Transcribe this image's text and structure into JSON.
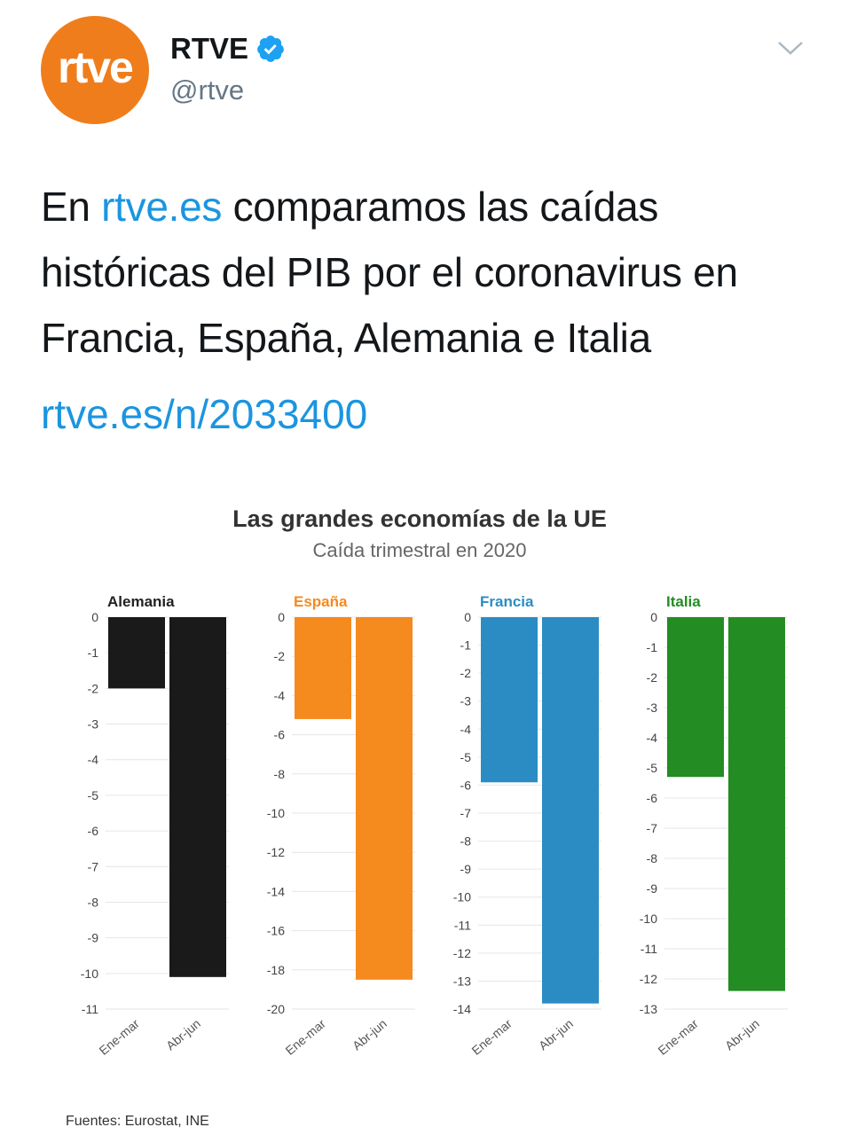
{
  "tweet": {
    "avatar_text": "rtve",
    "display_name": "RTVE",
    "handle": "@rtve",
    "text_parts": {
      "pre": "En ",
      "link": "rtve.es",
      "post": " comparamos las caídas históricas del PIB por el coronavirus en Francia, España, Alemania e Italia"
    },
    "url": "rtve.es/n/2033400"
  },
  "colors": {
    "brand": "#f07d1c",
    "link": "#1b95e0",
    "verified": "#1da1f2"
  },
  "icons": {
    "verified": "verified-badge-icon",
    "menu": "chevron-down-icon"
  },
  "chart": {
    "title": "Las grandes economías de la UE",
    "subtitle": "Caída trimestral en 2020",
    "source": "Fuentes: Eurostat, INE"
  },
  "chart_data": [
    {
      "type": "bar",
      "title": "Alemania",
      "color": "#1a1a1a",
      "categories": [
        "Ene-mar",
        "Abr-jun"
      ],
      "values": [
        -2.0,
        -10.1
      ],
      "ylim": [
        -11,
        0
      ],
      "yticks": [
        0,
        -1,
        -2,
        -3,
        -4,
        -5,
        -6,
        -7,
        -8,
        -9,
        -10,
        -11
      ]
    },
    {
      "type": "bar",
      "title": "España",
      "color": "#f58a1f",
      "categories": [
        "Ene-mar",
        "Abr-jun"
      ],
      "values": [
        -5.2,
        -18.5
      ],
      "ylim": [
        -20,
        0
      ],
      "yticks": [
        0,
        -2,
        -4,
        -6,
        -8,
        -10,
        -12,
        -14,
        -16,
        -18,
        -20
      ]
    },
    {
      "type": "bar",
      "title": "Francia",
      "color": "#2b8cc4",
      "categories": [
        "Ene-mar",
        "Abr-jun"
      ],
      "values": [
        -5.9,
        -13.8
      ],
      "ylim": [
        -14,
        0
      ],
      "yticks": [
        0,
        -1,
        -2,
        -3,
        -4,
        -5,
        -6,
        -7,
        -8,
        -9,
        -10,
        -11,
        -12,
        -13,
        -14
      ]
    },
    {
      "type": "bar",
      "title": "Italia",
      "color": "#238c23",
      "categories": [
        "Ene-mar",
        "Abr-jun"
      ],
      "values": [
        -5.3,
        -12.4
      ],
      "ylim": [
        -13,
        0
      ],
      "yticks": [
        0,
        -1,
        -2,
        -3,
        -4,
        -5,
        -6,
        -7,
        -8,
        -9,
        -10,
        -11,
        -12,
        -13
      ]
    }
  ]
}
